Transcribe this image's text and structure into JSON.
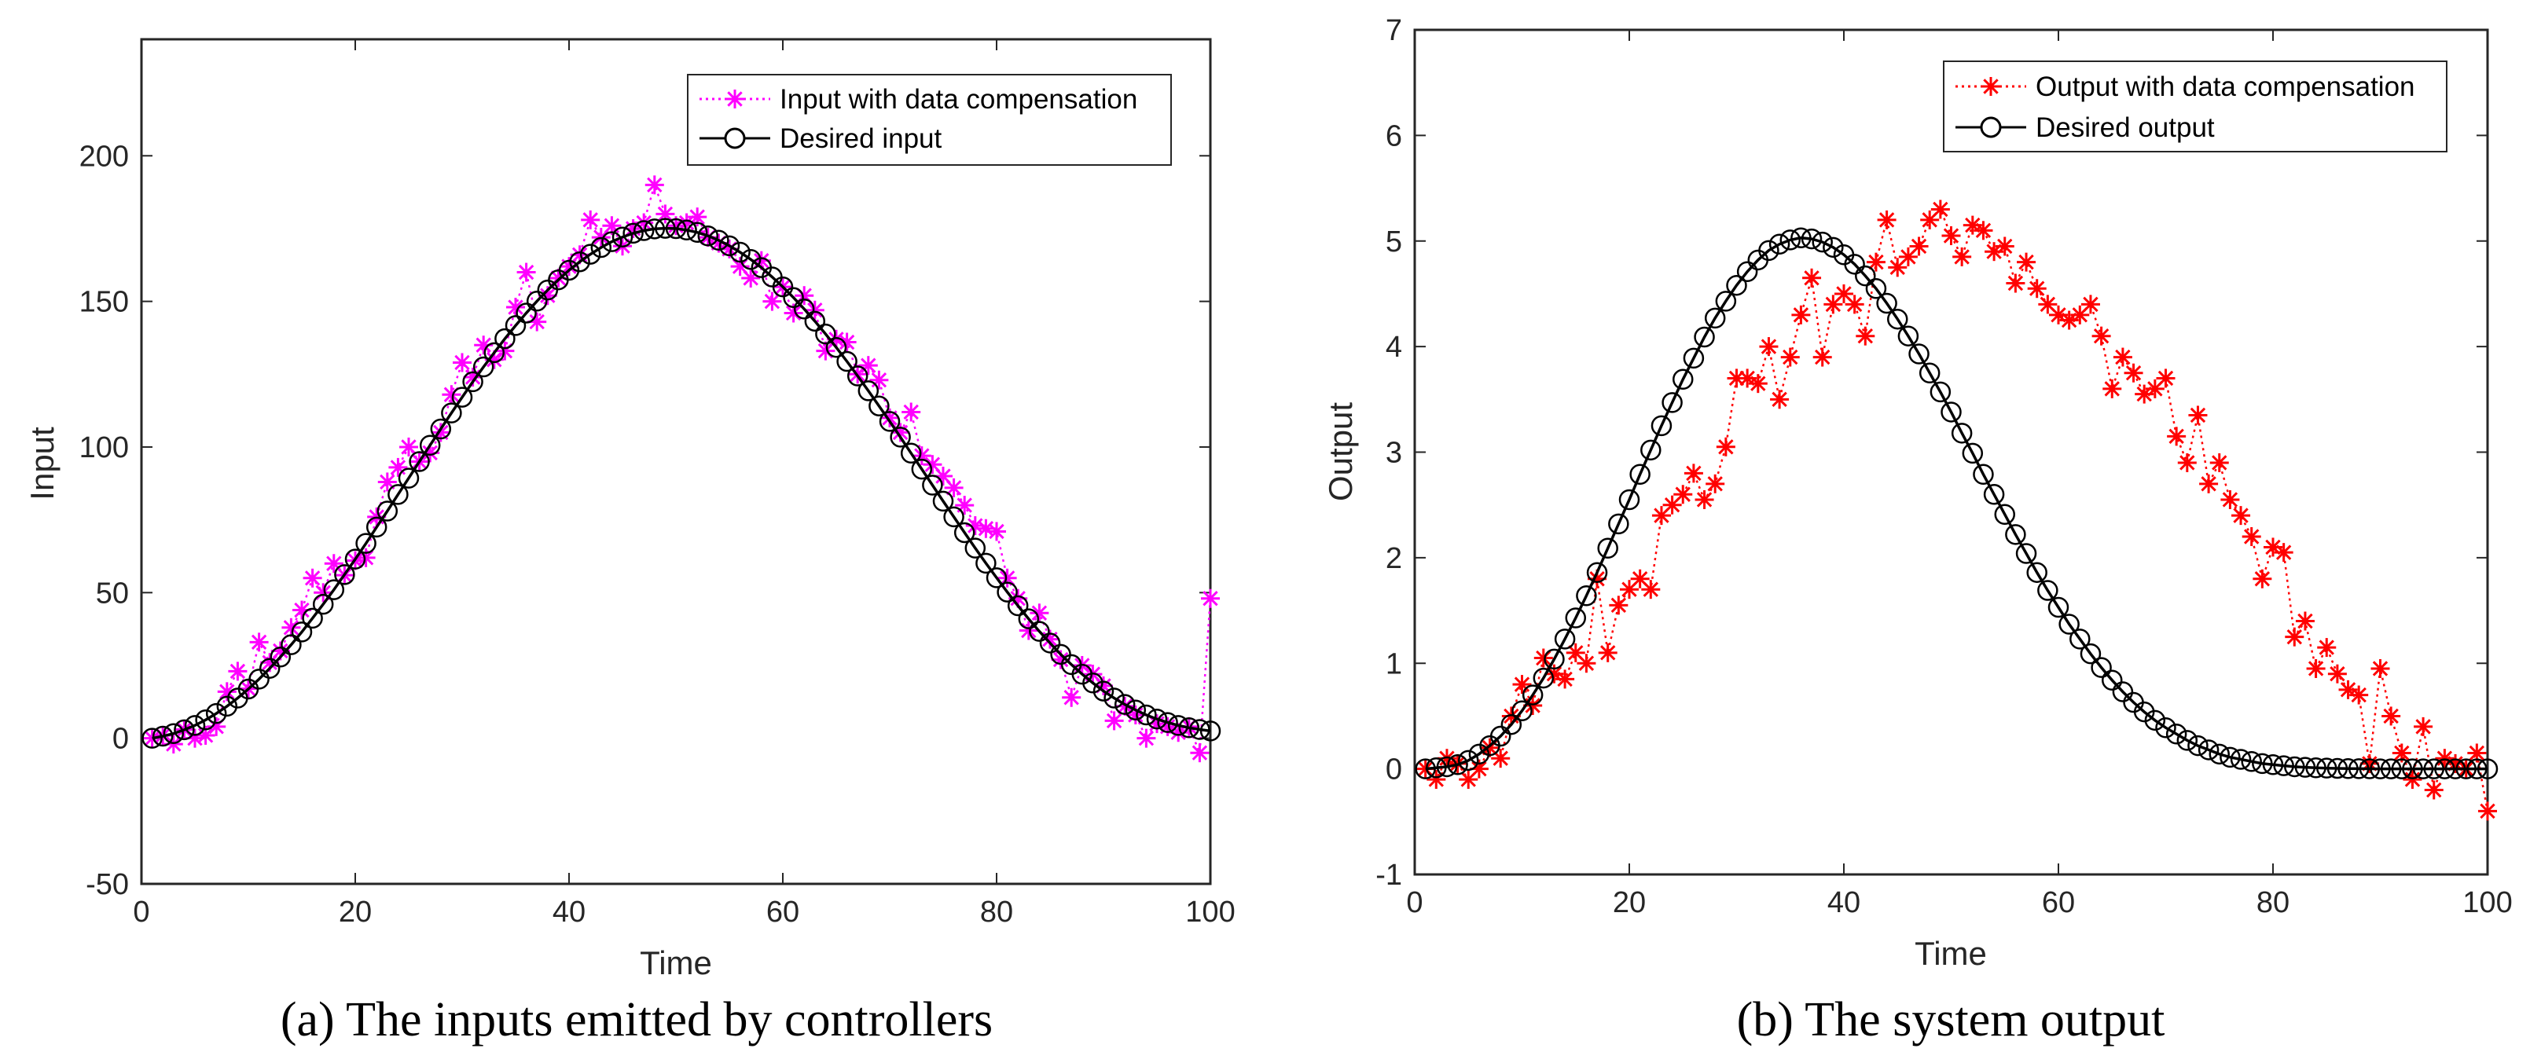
{
  "chart_data": [
    {
      "type": "line",
      "xlabel": "Time",
      "ylabel": "Input",
      "xlim": [
        0,
        100
      ],
      "ylim": [
        -50,
        240
      ],
      "xticks": [
        0,
        20,
        40,
        60,
        80,
        100
      ],
      "yticks": [
        -50,
        0,
        50,
        100,
        150,
        200
      ],
      "grid": false,
      "legend_position": "top-right",
      "caption": "(a)  The inputs emitted by controllers",
      "colors": {
        "compensated": "#ff00ff",
        "desired": "#000000"
      },
      "series": [
        {
          "name": "Input with data compensation",
          "style": "dotted-star",
          "x": [
            1,
            2,
            3,
            4,
            5,
            6,
            7,
            8,
            9,
            10,
            11,
            12,
            13,
            14,
            15,
            16,
            17,
            18,
            19,
            20,
            21,
            22,
            23,
            24,
            25,
            26,
            27,
            28,
            29,
            30,
            31,
            32,
            33,
            34,
            35,
            36,
            37,
            38,
            39,
            40,
            41,
            42,
            43,
            44,
            45,
            46,
            47,
            48,
            49,
            50,
            51,
            52,
            53,
            54,
            55,
            56,
            57,
            58,
            59,
            60,
            61,
            62,
            63,
            64,
            65,
            66,
            67,
            68,
            69,
            70,
            71,
            72,
            73,
            74,
            75,
            76,
            77,
            78,
            79,
            80,
            81,
            82,
            83,
            84,
            85,
            86,
            87,
            88,
            89,
            90,
            91,
            92,
            93,
            94,
            95,
            96,
            97,
            98,
            99,
            100
          ],
          "values": [
            0,
            1,
            -2,
            3,
            0,
            1,
            4,
            16,
            23,
            17,
            33,
            26,
            30,
            38,
            44,
            55,
            50,
            60,
            56,
            61,
            62,
            76,
            88,
            93,
            100,
            95,
            98,
            105,
            118,
            129,
            124,
            135,
            130,
            133,
            148,
            160,
            143,
            152,
            158,
            162,
            166,
            178,
            172,
            176,
            169,
            175,
            177,
            190,
            180,
            176,
            177,
            179,
            172,
            170,
            168,
            162,
            158,
            164,
            150,
            155,
            146,
            152,
            147,
            133,
            137,
            136,
            125,
            128,
            123,
            110,
            105,
            112,
            97,
            94,
            90,
            86,
            80,
            73,
            72,
            71,
            55,
            48,
            37,
            43,
            34,
            27,
            14,
            25,
            22,
            18,
            6,
            11,
            8,
            0,
            5,
            4,
            2,
            4,
            -5,
            48
          ]
        },
        {
          "name": "Desired input",
          "style": "solid-circle",
          "x": [
            1,
            2,
            3,
            4,
            5,
            6,
            7,
            8,
            9,
            10,
            11,
            12,
            13,
            14,
            15,
            16,
            17,
            18,
            19,
            20,
            21,
            22,
            23,
            24,
            25,
            26,
            27,
            28,
            29,
            30,
            31,
            32,
            33,
            34,
            35,
            36,
            37,
            38,
            39,
            40,
            41,
            42,
            43,
            44,
            45,
            46,
            47,
            48,
            49,
            50,
            51,
            52,
            53,
            54,
            55,
            56,
            57,
            58,
            59,
            60,
            61,
            62,
            63,
            64,
            65,
            66,
            67,
            68,
            69,
            70,
            71,
            72,
            73,
            74,
            75,
            76,
            77,
            78,
            79,
            80,
            81,
            82,
            83,
            84,
            85,
            86,
            87,
            88,
            89,
            90,
            91,
            92,
            93,
            94,
            95,
            96,
            97,
            98,
            99,
            100
          ],
          "values": [
            0.0,
            0.7,
            1.6,
            2.9,
            4.4,
            6.3,
            8.5,
            11.0,
            13.8,
            16.9,
            20.3,
            24.0,
            27.9,
            32.1,
            36.5,
            41.2,
            46.0,
            51.0,
            56.2,
            61.5,
            66.9,
            72.5,
            78.0,
            83.7,
            89.3,
            95.0,
            100.6,
            106.2,
            111.7,
            117.1,
            122.4,
            127.5,
            132.4,
            137.2,
            141.7,
            146.0,
            150.1,
            153.9,
            157.4,
            160.7,
            163.6,
            166.2,
            168.5,
            170.5,
            172.1,
            173.4,
            174.3,
            174.9,
            175.1,
            175.0,
            174.5,
            173.7,
            172.5,
            171.0,
            169.1,
            166.9,
            164.4,
            161.6,
            158.4,
            155.0,
            151.3,
            147.4,
            143.2,
            138.8,
            134.2,
            129.4,
            124.4,
            119.3,
            114.1,
            108.8,
            103.4,
            97.9,
            92.4,
            86.9,
            81.4,
            76.0,
            70.6,
            65.3,
            60.1,
            55.1,
            50.2,
            45.5,
            41.0,
            36.7,
            32.7,
            28.8,
            25.3,
            22.0,
            19.0,
            16.2,
            13.8,
            11.6,
            9.7,
            8.0,
            6.6,
            5.4,
            4.4,
            3.6,
            3.0,
            2.5
          ]
        }
      ]
    },
    {
      "type": "line",
      "xlabel": "Time",
      "ylabel": "Output",
      "xlim": [
        0,
        100
      ],
      "ylim": [
        -1,
        7
      ],
      "xticks": [
        0,
        20,
        40,
        60,
        80,
        100
      ],
      "yticks": [
        -1,
        0,
        1,
        2,
        3,
        4,
        5,
        6,
        7
      ],
      "grid": false,
      "legend_position": "top-right",
      "caption": "(b)  The system output",
      "colors": {
        "compensated": "#ff0000",
        "desired": "#000000"
      },
      "series": [
        {
          "name": "Output with data compensation",
          "style": "dotted-star",
          "x": [
            1,
            2,
            3,
            4,
            5,
            6,
            7,
            8,
            9,
            10,
            11,
            12,
            13,
            14,
            15,
            16,
            17,
            18,
            19,
            20,
            21,
            22,
            23,
            24,
            25,
            26,
            27,
            28,
            29,
            30,
            31,
            32,
            33,
            34,
            35,
            36,
            37,
            38,
            39,
            40,
            41,
            42,
            43,
            44,
            45,
            46,
            47,
            48,
            49,
            50,
            51,
            52,
            53,
            54,
            55,
            56,
            57,
            58,
            59,
            60,
            61,
            62,
            63,
            64,
            65,
            66,
            67,
            68,
            69,
            70,
            71,
            72,
            73,
            74,
            75,
            76,
            77,
            78,
            79,
            80,
            81,
            82,
            83,
            84,
            85,
            86,
            87,
            88,
            89,
            90,
            91,
            92,
            93,
            94,
            95,
            96,
            97,
            98,
            99,
            100
          ],
          "values": [
            0.0,
            -0.1,
            0.1,
            0.05,
            -0.1,
            0.0,
            0.2,
            0.1,
            0.5,
            0.8,
            0.6,
            1.05,
            0.9,
            0.85,
            1.1,
            1.0,
            1.8,
            1.1,
            1.55,
            1.7,
            1.8,
            1.7,
            2.4,
            2.5,
            2.6,
            2.8,
            2.55,
            2.7,
            3.05,
            3.7,
            3.7,
            3.65,
            4.0,
            3.5,
            3.9,
            4.3,
            4.65,
            3.9,
            4.4,
            4.5,
            4.4,
            4.1,
            4.8,
            5.2,
            4.75,
            4.85,
            4.95,
            5.2,
            5.3,
            5.05,
            4.85,
            5.15,
            5.1,
            4.9,
            4.95,
            4.6,
            4.8,
            4.55,
            4.4,
            4.3,
            4.25,
            4.3,
            4.4,
            4.1,
            3.6,
            3.9,
            3.75,
            3.55,
            3.6,
            3.7,
            3.15,
            2.9,
            3.35,
            2.7,
            2.9,
            2.55,
            2.4,
            2.2,
            1.8,
            2.1,
            2.05,
            1.25,
            1.4,
            0.95,
            1.15,
            0.9,
            0.75,
            0.7,
            0.05,
            0.95,
            0.5,
            0.15,
            -0.1,
            0.4,
            -0.2,
            0.1,
            0.05,
            0.0,
            0.15,
            -0.4
          ]
        },
        {
          "name": "Desired output",
          "style": "solid-circle",
          "x": [
            1,
            2,
            3,
            4,
            5,
            6,
            7,
            8,
            9,
            10,
            11,
            12,
            13,
            14,
            15,
            16,
            17,
            18,
            19,
            20,
            21,
            22,
            23,
            24,
            25,
            26,
            27,
            28,
            29,
            30,
            31,
            32,
            33,
            34,
            35,
            36,
            37,
            38,
            39,
            40,
            41,
            42,
            43,
            44,
            45,
            46,
            47,
            48,
            49,
            50,
            51,
            52,
            53,
            54,
            55,
            56,
            57,
            58,
            59,
            60,
            61,
            62,
            63,
            64,
            65,
            66,
            67,
            68,
            69,
            70,
            71,
            72,
            73,
            74,
            75,
            76,
            77,
            78,
            79,
            80,
            81,
            82,
            83,
            84,
            85,
            86,
            87,
            88,
            89,
            90,
            91,
            92,
            93,
            94,
            95,
            96,
            97,
            98,
            99,
            100
          ],
          "values": [
            0.0,
            0.01,
            0.02,
            0.04,
            0.08,
            0.14,
            0.22,
            0.31,
            0.42,
            0.55,
            0.7,
            0.86,
            1.04,
            1.23,
            1.43,
            1.64,
            1.86,
            2.09,
            2.32,
            2.55,
            2.79,
            3.02,
            3.25,
            3.47,
            3.69,
            3.89,
            4.09,
            4.27,
            4.43,
            4.58,
            4.71,
            4.82,
            4.91,
            4.97,
            5.01,
            5.03,
            5.02,
            4.99,
            4.94,
            4.87,
            4.78,
            4.67,
            4.55,
            4.41,
            4.26,
            4.1,
            3.93,
            3.75,
            3.57,
            3.38,
            3.18,
            2.99,
            2.79,
            2.6,
            2.41,
            2.22,
            2.04,
            1.86,
            1.69,
            1.53,
            1.37,
            1.23,
            1.09,
            0.96,
            0.84,
            0.73,
            0.63,
            0.54,
            0.46,
            0.39,
            0.33,
            0.27,
            0.22,
            0.18,
            0.14,
            0.11,
            0.09,
            0.07,
            0.05,
            0.04,
            0.03,
            0.02,
            0.015,
            0.01,
            0.007,
            0.005,
            0.003,
            0.002,
            0.001,
            0.0,
            0.0,
            0.0,
            0.0,
            0.0,
            0.0,
            0.0,
            0.0,
            0.0,
            0.0,
            0.0
          ]
        }
      ]
    }
  ]
}
